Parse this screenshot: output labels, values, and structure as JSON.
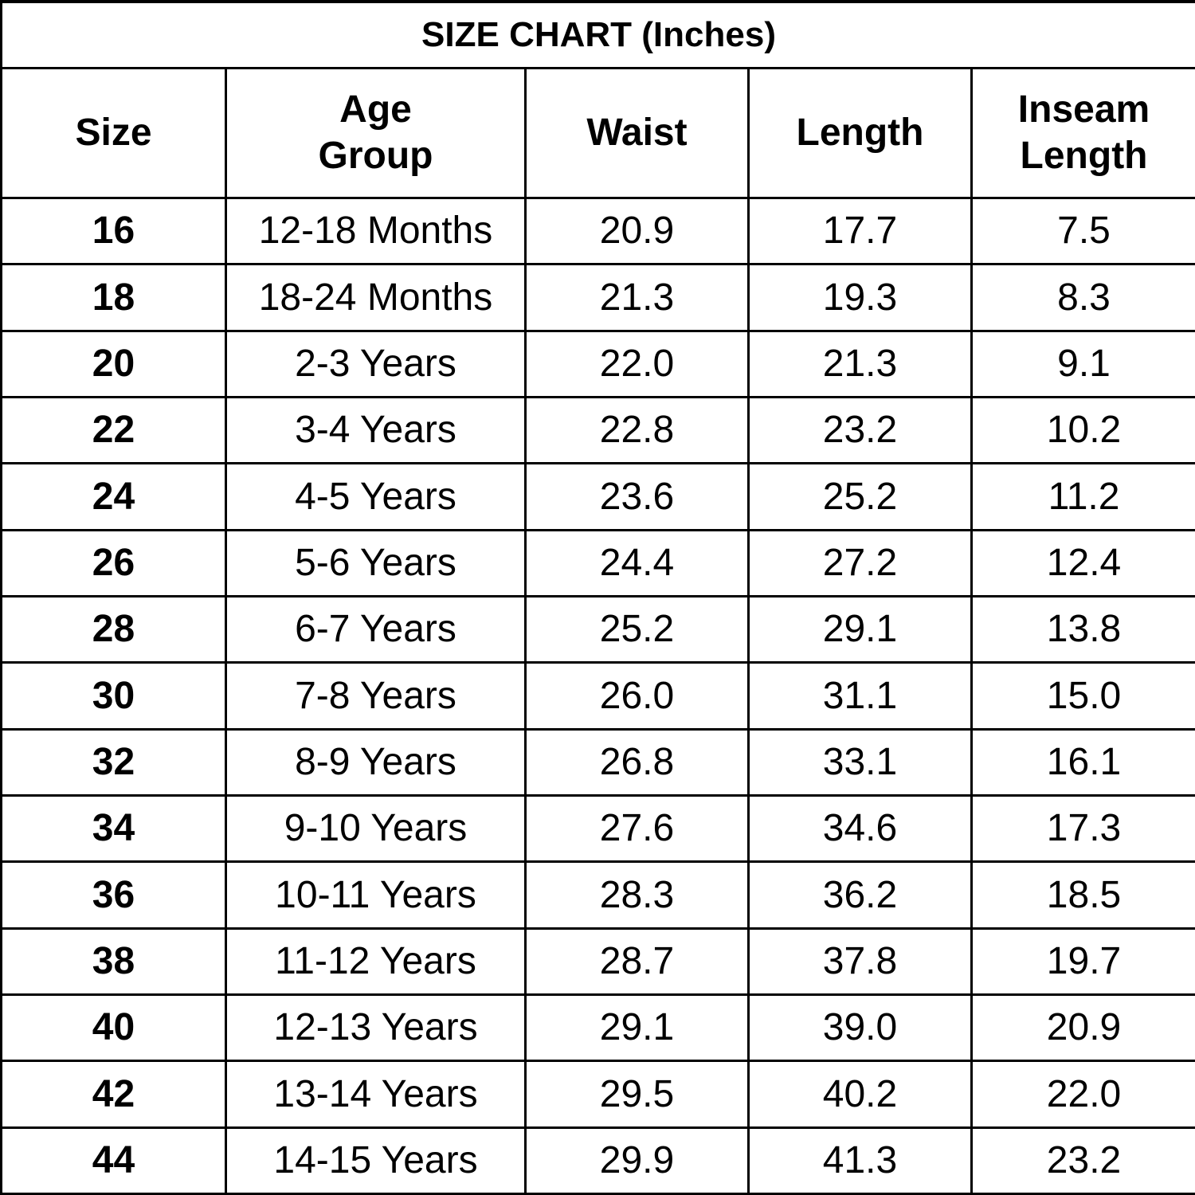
{
  "table": {
    "title": "SIZE CHART (Inches)",
    "columns": [
      "Size",
      "Age Group",
      "Waist",
      "Length",
      "Inseam Length"
    ],
    "rows": [
      [
        "16",
        "12-18 Months",
        "20.9",
        "17.7",
        "7.5"
      ],
      [
        "18",
        "18-24 Months",
        "21.3",
        "19.3",
        "8.3"
      ],
      [
        "20",
        "2-3 Years",
        "22.0",
        "21.3",
        "9.1"
      ],
      [
        "22",
        "3-4 Years",
        "22.8",
        "23.2",
        "10.2"
      ],
      [
        "24",
        "4-5 Years",
        "23.6",
        "25.2",
        "11.2"
      ],
      [
        "26",
        "5-6 Years",
        "24.4",
        "27.2",
        "12.4"
      ],
      [
        "28",
        "6-7 Years",
        "25.2",
        "29.1",
        "13.8"
      ],
      [
        "30",
        "7-8 Years",
        "26.0",
        "31.1",
        "15.0"
      ],
      [
        "32",
        "8-9 Years",
        "26.8",
        "33.1",
        "16.1"
      ],
      [
        "34",
        "9-10 Years",
        "27.6",
        "34.6",
        "17.3"
      ],
      [
        "36",
        "10-11 Years",
        "28.3",
        "36.2",
        "18.5"
      ],
      [
        "38",
        "11-12 Years",
        "28.7",
        "37.8",
        "19.7"
      ],
      [
        "40",
        "12-13 Years",
        "29.1",
        "39.0",
        "20.9"
      ],
      [
        "42",
        "13-14 Years",
        "29.5",
        "40.2",
        "22.0"
      ],
      [
        "44",
        "14-15 Years",
        "29.9",
        "41.3",
        "23.2"
      ]
    ]
  }
}
